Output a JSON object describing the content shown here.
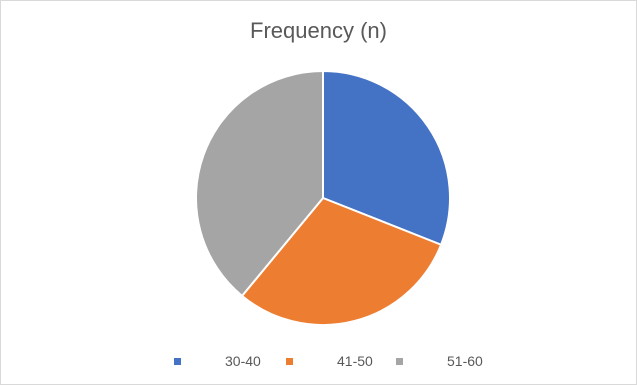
{
  "chart_data": {
    "type": "pie",
    "title": "Frequency (n)",
    "categories": [
      "30-40",
      "41-50",
      "51-60"
    ],
    "values": [
      31,
      30,
      39
    ],
    "colors": [
      "#4472C4",
      "#ED7D31",
      "#A5A5A5"
    ],
    "start_angle_deg": 0,
    "direction": "clockwise",
    "slice_border_color": "#FFFFFF",
    "legend_position": "bottom"
  }
}
